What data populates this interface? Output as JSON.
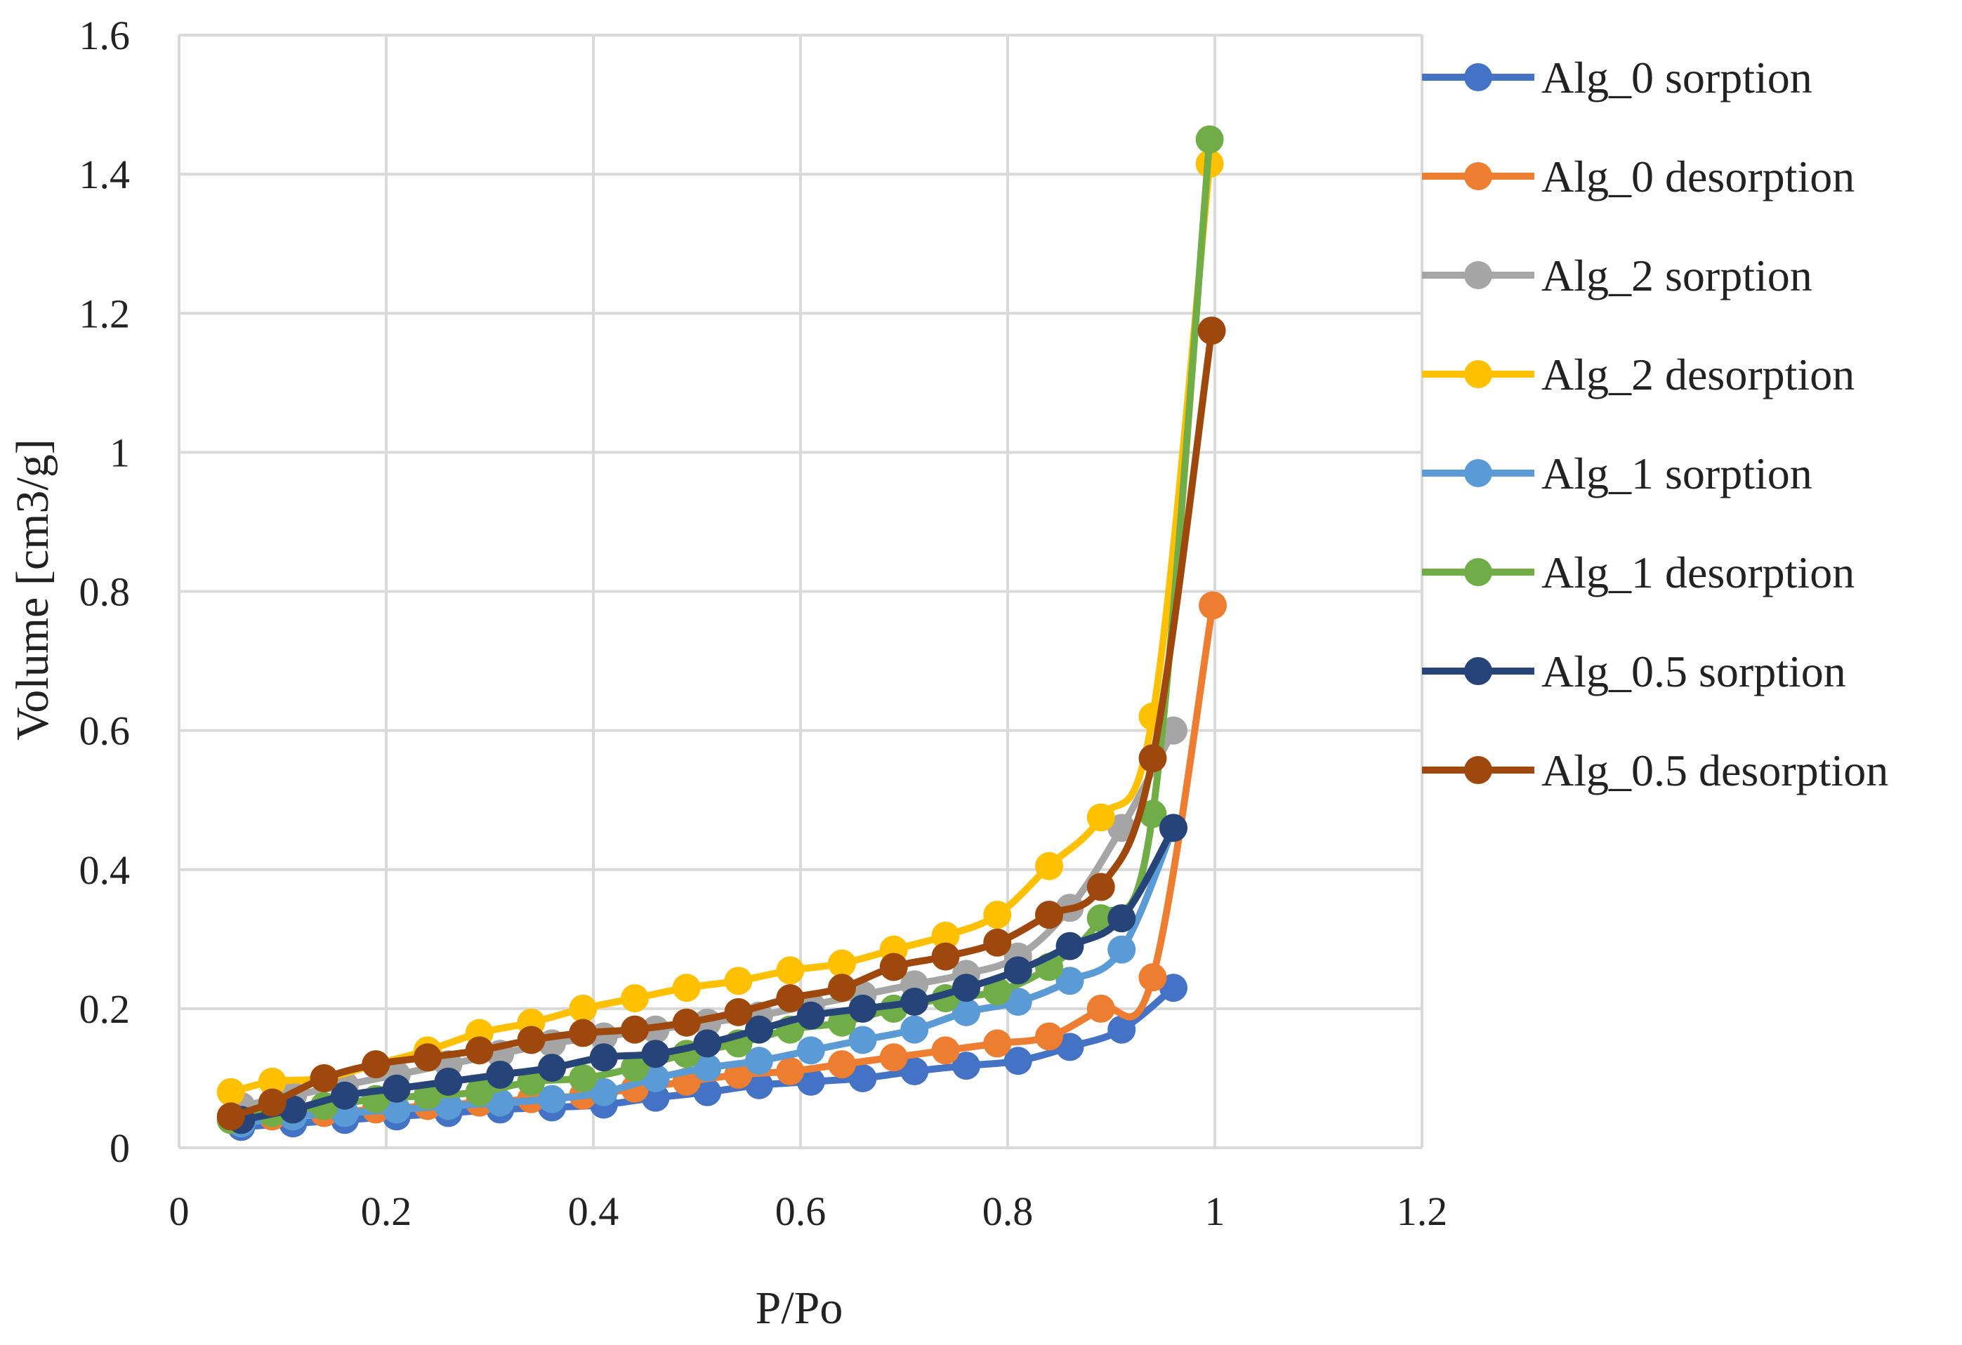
{
  "chart_data": {
    "type": "line",
    "title": "",
    "xlabel": "P/Po",
    "ylabel": "Volume [cm3/g]",
    "xlim": [
      0,
      1.2
    ],
    "ylim": [
      0,
      1.6
    ],
    "xticks": [
      0,
      0.2,
      0.4,
      0.6,
      0.8,
      1,
      1.2
    ],
    "xtick_labels": [
      "0",
      "0.2",
      "0.4",
      "0.6",
      "0.8",
      "1",
      "1.2"
    ],
    "yticks": [
      0,
      0.2,
      0.4,
      0.6,
      0.8,
      1,
      1.2,
      1.4,
      1.6
    ],
    "ytick_labels": [
      "0",
      "0.2",
      "0.4",
      "0.6",
      "0.8",
      "1",
      "1.2",
      "1.4",
      "1.6"
    ],
    "grid": true,
    "legend_position": "right",
    "series": [
      {
        "name": "Alg_0 sorption",
        "color": "#4472C4",
        "x": [
          0.06,
          0.11,
          0.16,
          0.21,
          0.26,
          0.31,
          0.36,
          0.41,
          0.46,
          0.51,
          0.56,
          0.61,
          0.66,
          0.71,
          0.76,
          0.81,
          0.86,
          0.91,
          0.96
        ],
        "y": [
          0.03,
          0.035,
          0.04,
          0.045,
          0.05,
          0.055,
          0.058,
          0.062,
          0.072,
          0.08,
          0.09,
          0.095,
          0.1,
          0.11,
          0.118,
          0.125,
          0.145,
          0.17,
          0.23
        ]
      },
      {
        "name": "Alg_0 desorption",
        "color": "#ED7D31",
        "x": [
          0.05,
          0.09,
          0.14,
          0.19,
          0.24,
          0.29,
          0.34,
          0.39,
          0.44,
          0.49,
          0.54,
          0.59,
          0.64,
          0.69,
          0.74,
          0.79,
          0.84,
          0.89,
          0.94,
          0.998
        ],
        "y": [
          0.04,
          0.045,
          0.05,
          0.055,
          0.06,
          0.065,
          0.07,
          0.075,
          0.085,
          0.095,
          0.105,
          0.11,
          0.12,
          0.13,
          0.14,
          0.15,
          0.16,
          0.2,
          0.245,
          0.78
        ]
      },
      {
        "name": "Alg_2 sorption",
        "color": "#A5A5A5",
        "x": [
          0.06,
          0.11,
          0.16,
          0.21,
          0.26,
          0.31,
          0.36,
          0.41,
          0.46,
          0.51,
          0.56,
          0.61,
          0.66,
          0.71,
          0.76,
          0.81,
          0.86,
          0.91,
          0.96
        ],
        "y": [
          0.06,
          0.075,
          0.09,
          0.105,
          0.12,
          0.135,
          0.15,
          0.16,
          0.17,
          0.18,
          0.19,
          0.205,
          0.22,
          0.235,
          0.25,
          0.275,
          0.345,
          0.46,
          0.6
        ]
      },
      {
        "name": "Alg_2 desorption",
        "color": "#FFC000",
        "x": [
          0.05,
          0.09,
          0.14,
          0.19,
          0.24,
          0.29,
          0.34,
          0.39,
          0.44,
          0.49,
          0.54,
          0.59,
          0.64,
          0.69,
          0.74,
          0.79,
          0.84,
          0.89,
          0.94,
          0.995
        ],
        "y": [
          0.08,
          0.095,
          0.1,
          0.12,
          0.14,
          0.165,
          0.18,
          0.2,
          0.215,
          0.23,
          0.24,
          0.255,
          0.265,
          0.285,
          0.305,
          0.335,
          0.405,
          0.475,
          0.62,
          1.415
        ]
      },
      {
        "name": "Alg_1 sorption",
        "color": "#5B9BD5",
        "x": [
          0.06,
          0.11,
          0.16,
          0.21,
          0.26,
          0.31,
          0.36,
          0.41,
          0.46,
          0.51,
          0.56,
          0.61,
          0.66,
          0.71,
          0.76,
          0.81,
          0.86,
          0.91,
          0.96
        ],
        "y": [
          0.035,
          0.045,
          0.05,
          0.055,
          0.06,
          0.065,
          0.07,
          0.08,
          0.1,
          0.115,
          0.125,
          0.14,
          0.155,
          0.17,
          0.195,
          0.21,
          0.24,
          0.285,
          0.46
        ]
      },
      {
        "name": "Alg_1 desorption",
        "color": "#70AD47",
        "x": [
          0.05,
          0.09,
          0.14,
          0.19,
          0.24,
          0.29,
          0.34,
          0.39,
          0.44,
          0.49,
          0.54,
          0.59,
          0.64,
          0.69,
          0.74,
          0.79,
          0.84,
          0.89,
          0.94,
          0.995
        ],
        "y": [
          0.04,
          0.05,
          0.06,
          0.07,
          0.075,
          0.08,
          0.095,
          0.1,
          0.115,
          0.135,
          0.15,
          0.17,
          0.18,
          0.2,
          0.215,
          0.225,
          0.26,
          0.33,
          0.48,
          1.45
        ]
      },
      {
        "name": "Alg_0.5 sorption",
        "color": "#264478",
        "x": [
          0.06,
          0.11,
          0.16,
          0.21,
          0.26,
          0.31,
          0.36,
          0.41,
          0.46,
          0.51,
          0.56,
          0.61,
          0.66,
          0.71,
          0.76,
          0.81,
          0.86,
          0.91,
          0.96
        ],
        "y": [
          0.04,
          0.055,
          0.075,
          0.085,
          0.095,
          0.105,
          0.115,
          0.13,
          0.135,
          0.15,
          0.17,
          0.19,
          0.2,
          0.21,
          0.23,
          0.255,
          0.29,
          0.33,
          0.46
        ]
      },
      {
        "name": "Alg_0.5 desorption",
        "color": "#9E480E",
        "x": [
          0.05,
          0.09,
          0.14,
          0.19,
          0.24,
          0.29,
          0.34,
          0.39,
          0.44,
          0.49,
          0.54,
          0.59,
          0.64,
          0.69,
          0.74,
          0.79,
          0.84,
          0.89,
          0.94,
          0.997
        ],
        "y": [
          0.045,
          0.065,
          0.1,
          0.12,
          0.13,
          0.14,
          0.155,
          0.165,
          0.17,
          0.18,
          0.195,
          0.215,
          0.23,
          0.26,
          0.275,
          0.295,
          0.335,
          0.375,
          0.56,
          1.175
        ]
      }
    ]
  }
}
